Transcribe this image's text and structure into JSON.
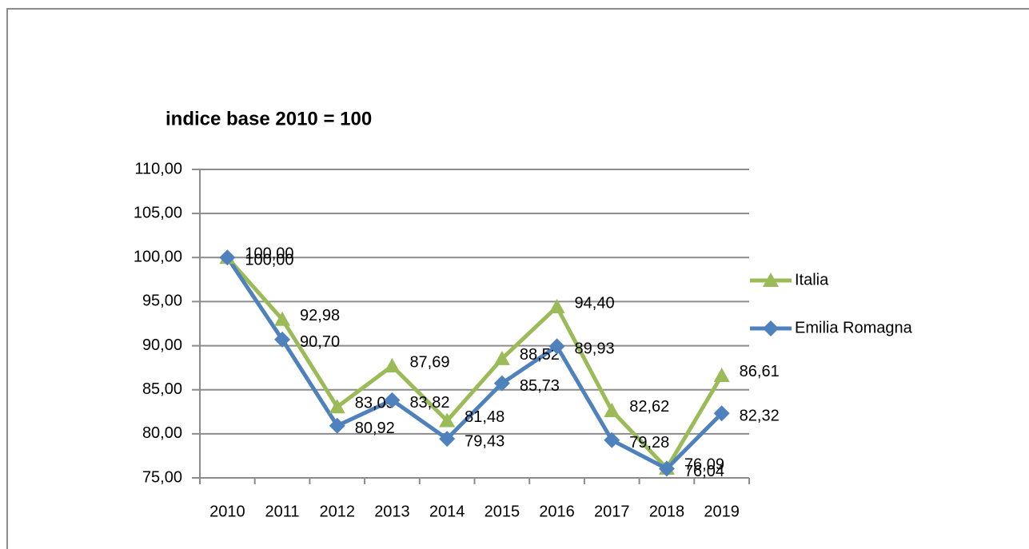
{
  "chart_data": {
    "type": "line",
    "title": "indice base 2010 = 100",
    "categories": [
      "2010",
      "2011",
      "2012",
      "2013",
      "2014",
      "2015",
      "2016",
      "2017",
      "2018",
      "2019"
    ],
    "series": [
      {
        "name": "Italia",
        "color": "#9bbb59",
        "marker": "triangle",
        "values": [
          100.0,
          92.98,
          83.05,
          87.69,
          81.48,
          88.52,
          94.4,
          82.62,
          76.09,
          86.61
        ],
        "value_labels": [
          "100,00",
          "92,98",
          "83,05",
          "87,69",
          "81,48",
          "88,52",
          "94,40",
          "82,62",
          "76,09",
          "86,61"
        ]
      },
      {
        "name": "Emilia Romagna",
        "color": "#4f81bd",
        "marker": "diamond",
        "values": [
          100.0,
          90.7,
          80.92,
          83.82,
          79.43,
          85.73,
          89.93,
          79.28,
          76.04,
          82.32
        ],
        "value_labels": [
          "100,00",
          "90,70",
          "80,92",
          "83,82",
          "79,43",
          "85,73",
          "89,93",
          "79,28",
          "76,04",
          "82,32"
        ]
      }
    ],
    "ylim": [
      75,
      110
    ],
    "yticks": [
      {
        "value": 75,
        "label": "75,00"
      },
      {
        "value": 80,
        "label": "80,00"
      },
      {
        "value": 85,
        "label": "85,00"
      },
      {
        "value": 90,
        "label": "90,00"
      },
      {
        "value": 95,
        "label": "95,00"
      },
      {
        "value": 100,
        "label": "100,00"
      },
      {
        "value": 105,
        "label": "105,00"
      },
      {
        "value": 110,
        "label": "110,00"
      }
    ],
    "grid": true,
    "legend": "right"
  }
}
